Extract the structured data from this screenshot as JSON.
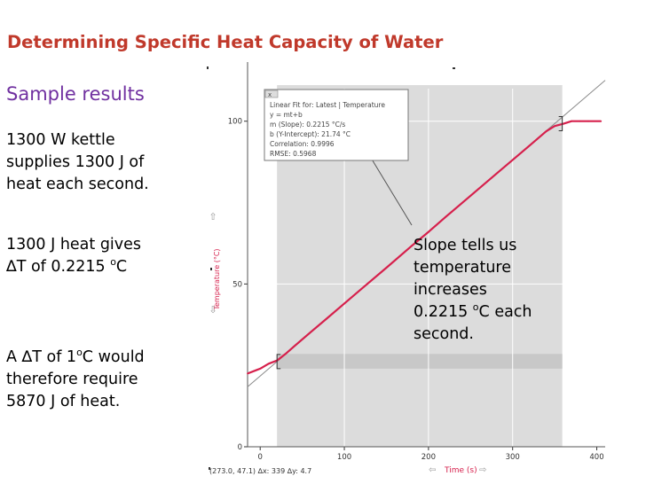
{
  "slide": {
    "title": "Determining Specific Heat Capacity of Water",
    "subtitle": "Sample results",
    "para1": [
      "1300 W kettle",
      "supplies 1300 J of",
      "heat each second."
    ],
    "para2_line1": "1300 J heat gives",
    "para2_delta": "∆T of 0.2215 ",
    "para2_unit_sup": "o",
    "para2_unit": "C",
    "para3_line1_a": "A ∆T of 1",
    "para3_line1_sup": "o",
    "para3_line1_b": "C would",
    "para3_rest": [
      "therefore require",
      "5870 J of heat."
    ],
    "slope_lines": [
      "Slope tells us",
      "temperature",
      "increases"
    ],
    "slope_value": "0.2215 ",
    "slope_sup": "o",
    "slope_value_unit": "C each",
    "slope_last": "second."
  },
  "fit_box": {
    "title": "Linear Fit for:  Latest | Temperature",
    "close_label": "x",
    "lines": [
      "y = mt+b",
      "m (Slope): 0.2215 °C/s",
      "b (Y-Intercept): 21.74 °C",
      "Correlation: 0.9996",
      "RMSE: 0.5968"
    ]
  },
  "graph": {
    "ylabel": "Temperature (°C)",
    "xlabel": "Time (s)",
    "status": "(273.0, 47.1) ∆x: 339 ∆y: 4.7"
  },
  "chart_data": {
    "type": "line",
    "title": "",
    "xlabel": "Time (s)",
    "ylabel": "Temperature (°C)",
    "xlim": [
      -15,
      410
    ],
    "ylim": [
      0,
      110
    ],
    "xticks": [
      0,
      100,
      200,
      300,
      400
    ],
    "yticks": [
      0,
      50,
      100
    ],
    "selection": [
      20,
      359
    ],
    "grid": true,
    "series": [
      {
        "name": "Temperature",
        "color": "#d6204c",
        "x": [
          -15,
          -5,
          0,
          10,
          20,
          30,
          40,
          60,
          80,
          100,
          120,
          150,
          180,
          200,
          220,
          250,
          280,
          300,
          320,
          340,
          350,
          360,
          370,
          380,
          390,
          405
        ],
        "y": [
          22.5,
          23.5,
          24.0,
          25.5,
          26.5,
          28.5,
          30.8,
          35.2,
          39.6,
          44.0,
          48.4,
          55.0,
          61.7,
          66.0,
          70.5,
          77.1,
          83.7,
          88.1,
          92.5,
          96.9,
          98.5,
          99.2,
          100.0,
          100.0,
          100.0,
          100.0
        ]
      }
    ],
    "fit": {
      "slope": 0.2215,
      "intercept": 21.74,
      "x": [
        -15,
        410
      ]
    }
  }
}
